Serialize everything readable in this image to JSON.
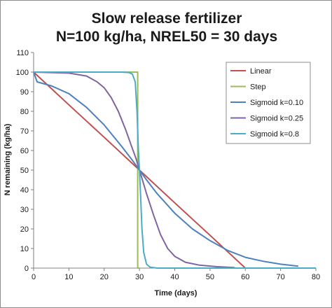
{
  "chart_data": {
    "type": "line",
    "title_lines": [
      "Slow release fertilizer",
      "N=100 kg/ha, NREL50 = 30 days"
    ],
    "xlabel": "Time (days)",
    "ylabel": "N remaining (kg/ha)",
    "xlim": [
      0,
      80
    ],
    "ylim": [
      0,
      110
    ],
    "x_ticks": [
      "0",
      "10",
      "20",
      "30",
      "40",
      "50",
      "60",
      "70",
      "80"
    ],
    "y_ticks": [
      "0",
      "10",
      "20",
      "30",
      "40",
      "50",
      "60",
      "70",
      "80",
      "90",
      "100",
      "110"
    ],
    "grid": false,
    "legend_position": "top-right",
    "series": [
      {
        "name": "Linear",
        "color": "#c0504d",
        "points": [
          [
            0,
            100
          ],
          [
            10,
            83.3
          ],
          [
            20,
            66.7
          ],
          [
            30,
            50
          ],
          [
            40,
            33.3
          ],
          [
            50,
            16.7
          ],
          [
            60,
            0
          ]
        ]
      },
      {
        "name": "Step",
        "color": "#9bbb59",
        "points": [
          [
            0,
            100
          ],
          [
            29.5,
            100
          ],
          [
            29.5,
            0
          ],
          [
            30,
            0
          ]
        ]
      },
      {
        "name": "Sigmoid k=0.10",
        "color": "#4f81bd",
        "points": [
          [
            0,
            100
          ],
          [
            1,
            95
          ],
          [
            5,
            93
          ],
          [
            10,
            89
          ],
          [
            15,
            82
          ],
          [
            20,
            73
          ],
          [
            25,
            62
          ],
          [
            28,
            55
          ],
          [
            30,
            50
          ],
          [
            32,
            45
          ],
          [
            35,
            38
          ],
          [
            40,
            28
          ],
          [
            45,
            20
          ],
          [
            50,
            14
          ],
          [
            55,
            9
          ],
          [
            60,
            5.5
          ],
          [
            65,
            3.5
          ],
          [
            70,
            2
          ],
          [
            75,
            1
          ]
        ]
      },
      {
        "name": "Sigmoid k=0.25",
        "color": "#8064a2",
        "points": [
          [
            0,
            100
          ],
          [
            10,
            99.5
          ],
          [
            15,
            98
          ],
          [
            18,
            95
          ],
          [
            20,
            92
          ],
          [
            22,
            87
          ],
          [
            24,
            80
          ],
          [
            26,
            71
          ],
          [
            28,
            61
          ],
          [
            29,
            56
          ],
          [
            30,
            50
          ],
          [
            31,
            44
          ],
          [
            32,
            38
          ],
          [
            34,
            27
          ],
          [
            36,
            17
          ],
          [
            38,
            10
          ],
          [
            40,
            6
          ],
          [
            43,
            3
          ],
          [
            47,
            1.5
          ],
          [
            52,
            0.7
          ],
          [
            57,
            0.3
          ]
        ]
      },
      {
        "name": "Sigmoid k=0.8",
        "color": "#4bacc6",
        "points": [
          [
            0,
            100
          ],
          [
            25,
            100
          ],
          [
            27,
            99.8
          ],
          [
            28,
            99
          ],
          [
            28.8,
            95
          ],
          [
            29.3,
            80
          ],
          [
            29.7,
            60
          ],
          [
            30,
            50
          ],
          [
            30.3,
            38
          ],
          [
            30.7,
            20
          ],
          [
            31.2,
            8
          ],
          [
            32,
            2
          ],
          [
            33,
            0.5
          ],
          [
            35,
            0
          ],
          [
            80,
            0
          ]
        ]
      }
    ]
  }
}
